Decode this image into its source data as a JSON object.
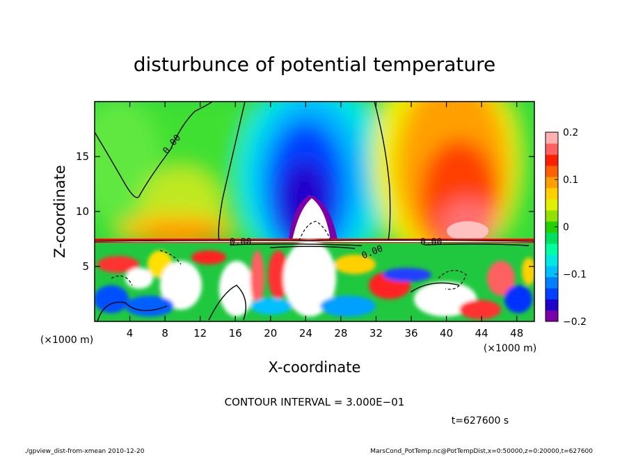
{
  "chart_data": {
    "type": "heatmap",
    "title": "disturbunce of potential temperature",
    "xlabel": "X-coordinate",
    "ylabel": "Z-coordinate",
    "x_unit_left": "(×1000 m)",
    "x_unit_right": "(×1000 m)",
    "xlim": [
      0,
      50
    ],
    "ylim": [
      0,
      20
    ],
    "x_ticks": [
      4,
      8,
      12,
      16,
      20,
      24,
      28,
      32,
      36,
      40,
      44,
      48
    ],
    "y_ticks": [
      5,
      10,
      15
    ],
    "colorbar": {
      "range": [
        -0.2,
        0.2
      ],
      "ticks": [
        {
          "value": 0.2,
          "label": "0.2"
        },
        {
          "value": 0.1,
          "label": "0.1"
        },
        {
          "value": 0.0,
          "label": "0"
        },
        {
          "value": -0.1,
          "label": "−0.1"
        },
        {
          "value": -0.2,
          "label": "−0.2"
        }
      ],
      "colors": [
        "#7b00a8",
        "#2200cc",
        "#0040ff",
        "#0080ff",
        "#00c0ff",
        "#00e8e0",
        "#00ffa0",
        "#00e060",
        "#20d000",
        "#90e000",
        "#e0f000",
        "#ffd000",
        "#ffa000",
        "#ff6000",
        "#ff2000",
        "#ff6060",
        "#ffb0b0"
      ]
    },
    "contour_labels": [
      "0.00",
      "0.00",
      "0.00",
      "0.00"
    ],
    "contour_interval_text": "CONTOUR INTERVAL = 3.000E−01",
    "time_text": "t=627600 s"
  },
  "footer": {
    "left": "./gpview_dist-from-xmean  2010-12-20",
    "right": "MarsCond_PotTemp.nc@PotTempDist,x=0:50000,z=0:20000,t=627600"
  }
}
